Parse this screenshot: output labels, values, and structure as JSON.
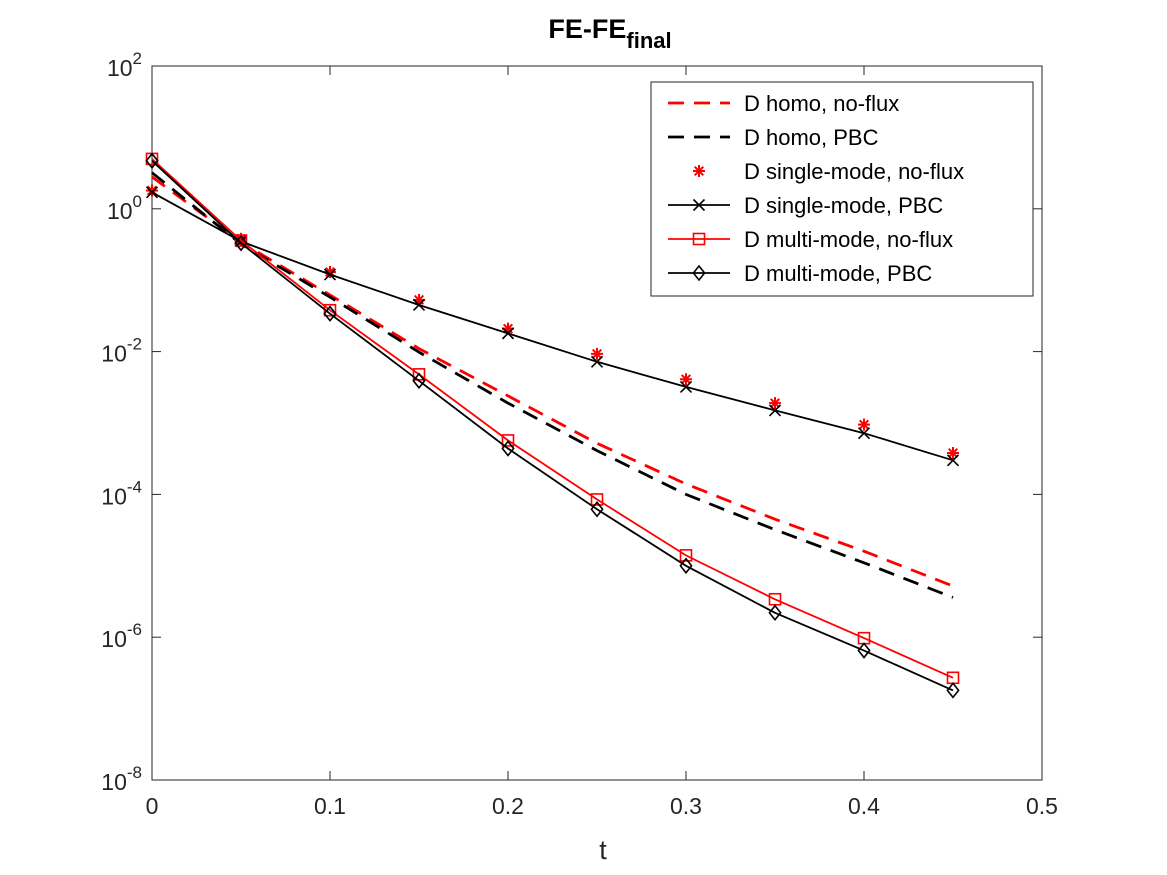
{
  "chart_data": {
    "type": "line",
    "title": "FE-FE",
    "title_subscript": "final",
    "xlabel": "t",
    "ylabel": "",
    "xscale": "linear",
    "yscale": "log",
    "xlim": [
      0,
      0.5
    ],
    "ylim": [
      1e-08,
      100
    ],
    "xticks": [
      0,
      0.1,
      0.2,
      0.3,
      0.4,
      0.5
    ],
    "xtick_labels": [
      "0",
      "0.1",
      "0.2",
      "0.3",
      "0.4",
      "0.5"
    ],
    "yticks": [
      {
        "value": 1e-08,
        "base": "10",
        "exp": "-8"
      },
      {
        "value": 1e-06,
        "base": "10",
        "exp": "-6"
      },
      {
        "value": 0.0001,
        "base": "10",
        "exp": "-4"
      },
      {
        "value": 0.01,
        "base": "10",
        "exp": "-2"
      },
      {
        "value": 1,
        "base": "10",
        "exp": "0"
      },
      {
        "value": 100,
        "base": "10",
        "exp": "2"
      }
    ],
    "grid": false,
    "legend_position": "top-right",
    "colors": {
      "red": "#ff0000",
      "black": "#000000"
    },
    "series": [
      {
        "name": "D homo, no-flux",
        "color": "#ff0000",
        "line": "dashed",
        "marker": "none",
        "x": [
          0,
          0.05,
          0.1,
          0.15,
          0.2,
          0.25,
          0.3,
          0.35,
          0.4,
          0.45
        ],
        "values": [
          2.8,
          0.34,
          0.062,
          0.011,
          0.0024,
          0.00052,
          0.00014,
          4.5e-05,
          1.6e-05,
          5.2e-06
        ]
      },
      {
        "name": "D homo, PBC",
        "color": "#000000",
        "line": "dashed",
        "marker": "none",
        "x": [
          0,
          0.05,
          0.1,
          0.15,
          0.2,
          0.25,
          0.3,
          0.35,
          0.4,
          0.45
        ],
        "values": [
          3.2,
          0.32,
          0.058,
          0.0098,
          0.0019,
          0.00041,
          0.0001,
          3.2e-05,
          1.1e-05,
          3.6e-06
        ]
      },
      {
        "name": "D single-mode, no-flux",
        "color": "#ff0000",
        "line": "none",
        "marker": "asterisk",
        "x": [
          0,
          0.05,
          0.1,
          0.15,
          0.2,
          0.25,
          0.3,
          0.35,
          0.4,
          0.45
        ],
        "values": [
          1.8,
          0.38,
          0.13,
          0.053,
          0.021,
          0.0093,
          0.0041,
          0.0019,
          0.00095,
          0.00038
        ]
      },
      {
        "name": "D single-mode, PBC",
        "color": "#000000",
        "line": "solid",
        "marker": "x",
        "x": [
          0,
          0.05,
          0.1,
          0.15,
          0.2,
          0.25,
          0.3,
          0.35,
          0.4,
          0.45
        ],
        "values": [
          1.7,
          0.35,
          0.12,
          0.045,
          0.018,
          0.0072,
          0.0032,
          0.0015,
          0.00072,
          0.0003
        ]
      },
      {
        "name": "D multi-mode, no-flux",
        "color": "#ff0000",
        "line": "solid",
        "marker": "square",
        "x": [
          0,
          0.05,
          0.1,
          0.15,
          0.2,
          0.25,
          0.3,
          0.35,
          0.4,
          0.45
        ],
        "values": [
          5.0,
          0.36,
          0.038,
          0.0048,
          0.00057,
          8.5e-05,
          1.4e-05,
          3.4e-06,
          9.7e-07,
          2.7e-07
        ]
      },
      {
        "name": "D multi-mode, PBC",
        "color": "#000000",
        "line": "solid",
        "marker": "diamond",
        "x": [
          0,
          0.05,
          0.1,
          0.15,
          0.2,
          0.25,
          0.3,
          0.35,
          0.4,
          0.45
        ],
        "values": [
          4.7,
          0.33,
          0.034,
          0.0039,
          0.00044,
          6.2e-05,
          1e-05,
          2.2e-06,
          6.5e-07,
          1.8e-07
        ]
      }
    ]
  }
}
